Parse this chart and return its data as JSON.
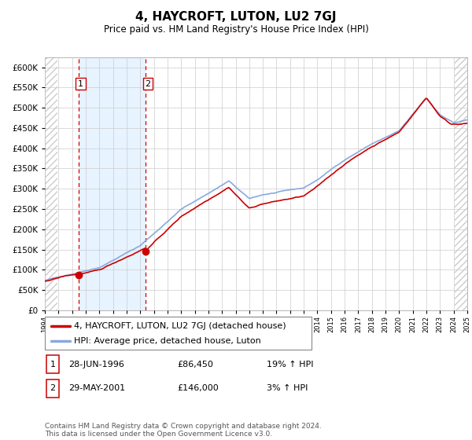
{
  "title": "4, HAYCROFT, LUTON, LU2 7GJ",
  "subtitle": "Price paid vs. HM Land Registry's House Price Index (HPI)",
  "ytick_values": [
    0,
    50000,
    100000,
    150000,
    200000,
    250000,
    300000,
    350000,
    400000,
    450000,
    500000,
    550000,
    600000
  ],
  "ylim": [
    0,
    625000
  ],
  "x_start_year": 1994,
  "x_end_year": 2025,
  "sale1_year": 1996.49,
  "sale1_price": 86450,
  "sale2_year": 2001.41,
  "sale2_price": 146000,
  "legend_line1": "4, HAYCROFT, LUTON, LU2 7GJ (detached house)",
  "legend_line2": "HPI: Average price, detached house, Luton",
  "annot1_label": "1",
  "annot1_date": "28-JUN-1996",
  "annot1_price": "£86,450",
  "annot1_hpi": "19% ↑ HPI",
  "annot2_label": "2",
  "annot2_date": "29-MAY-2001",
  "annot2_price": "£146,000",
  "annot2_hpi": "3% ↑ HPI",
  "footer": "Contains HM Land Registry data © Crown copyright and database right 2024.\nThis data is licensed under the Open Government Licence v3.0.",
  "line_color_sale": "#cc0000",
  "line_color_hpi": "#88aadd",
  "shade_color": "#ddeeff",
  "background_color": "#ffffff"
}
